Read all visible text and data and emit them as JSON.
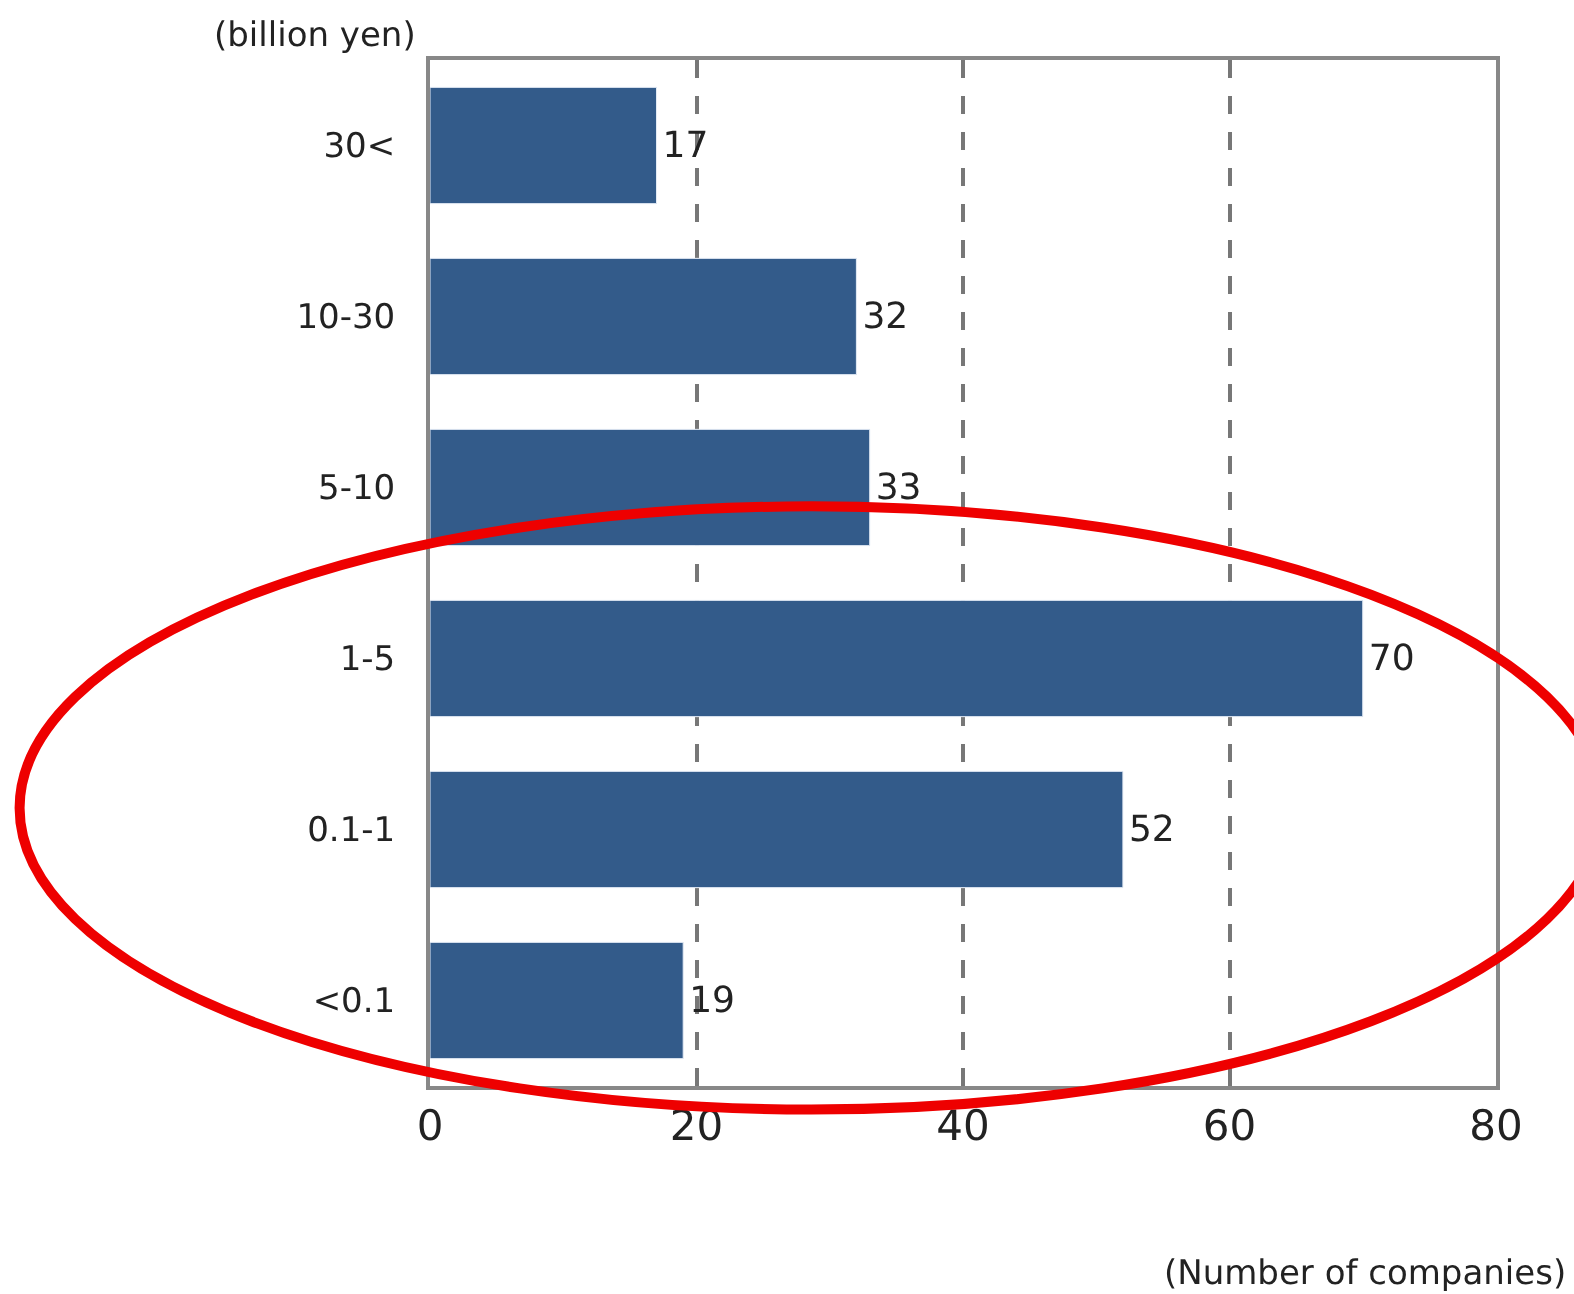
{
  "chart_data": {
    "type": "bar",
    "orientation": "horizontal",
    "categories": [
      "30<",
      "10-30",
      "5-10",
      "1-5",
      "0.1-1",
      "<0.1"
    ],
    "values": [
      17,
      32,
      33,
      70,
      52,
      19
    ],
    "color": "#335b8a",
    "xlim": [
      0,
      80
    ],
    "xticks": [
      0,
      20,
      40,
      60,
      80
    ],
    "grid": "x",
    "data_labels": true,
    "legend": false,
    "xlabel": "(Number of companies)",
    "ylabel": "(billion yen)"
  }
}
